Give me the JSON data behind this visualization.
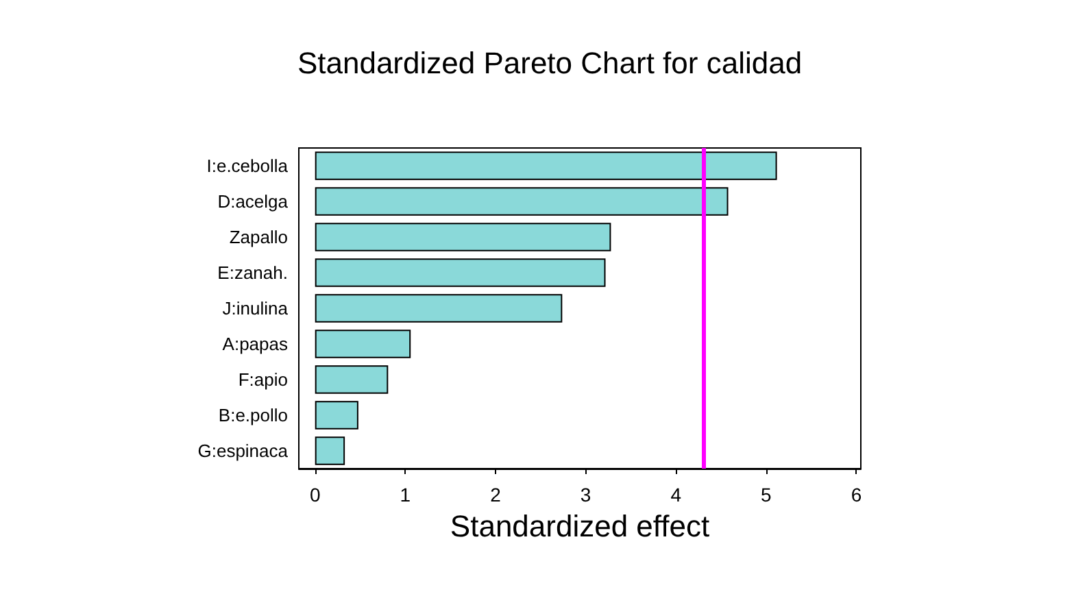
{
  "chart_data": {
    "type": "bar",
    "orientation": "horizontal",
    "title": "Standardized Pareto Chart for calidad",
    "xlabel": "Standardized effect",
    "categories": [
      "I:e.cebolla",
      "D:acelga",
      "Zapallo",
      "E:zanah.",
      "J:inulina",
      "A:papas",
      "F:apio",
      "B:e.pollo",
      "G:espinaca"
    ],
    "values": [
      5.12,
      4.58,
      3.28,
      3.22,
      2.74,
      1.06,
      0.81,
      0.48,
      0.33
    ],
    "color": "#8ad9d9",
    "xlim": [
      -0.18,
      6.05
    ],
    "xticks": [
      0,
      1,
      2,
      3,
      4,
      5,
      6
    ],
    "ref_lines": [
      {
        "axis": "x",
        "value": 4.3,
        "color": "#ff00ff"
      }
    ],
    "grid": false
  }
}
